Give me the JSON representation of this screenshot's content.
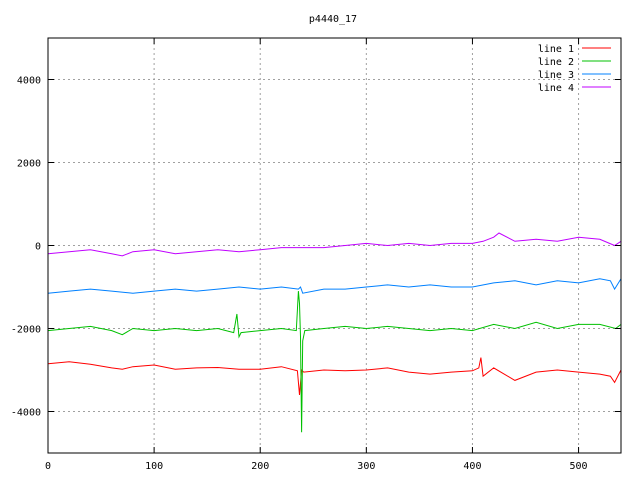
{
  "chart_data": {
    "type": "line",
    "title": "p4440_17",
    "xlabel": "",
    "ylabel": "",
    "xlim": [
      0,
      540
    ],
    "ylim": [
      -5000,
      5000
    ],
    "x_ticks": [
      0,
      100,
      200,
      300,
      400,
      500
    ],
    "y_ticks": [
      -4000,
      -2000,
      0,
      2000,
      4000
    ],
    "x_tick_labels": [
      "0",
      "100",
      "200",
      "300",
      "400",
      "500"
    ],
    "y_tick_labels": [
      "-4000",
      "-2000",
      "0",
      "2000",
      "4000"
    ],
    "grid": true,
    "legend_position": "top-right",
    "series": [
      {
        "name": "line 1",
        "color": "#ff0000",
        "x": [
          0,
          20,
          40,
          60,
          70,
          80,
          100,
          120,
          140,
          160,
          180,
          200,
          220,
          235,
          237,
          239,
          241,
          260,
          280,
          300,
          320,
          340,
          360,
          380,
          400,
          406,
          408,
          410,
          420,
          440,
          460,
          480,
          500,
          520,
          530,
          534,
          540
        ],
        "y": [
          -2850,
          -2800,
          -2860,
          -2950,
          -2980,
          -2920,
          -2880,
          -2980,
          -2950,
          -2940,
          -2980,
          -2980,
          -2920,
          -3020,
          -3600,
          -3000,
          -3050,
          -3000,
          -3020,
          -3000,
          -2950,
          -3050,
          -3100,
          -3050,
          -3020,
          -2950,
          -2700,
          -3150,
          -2950,
          -3250,
          -3050,
          -3000,
          -3050,
          -3100,
          -3150,
          -3300,
          -3000
        ]
      },
      {
        "name": "line 2",
        "color": "#00c000",
        "x": [
          0,
          20,
          40,
          60,
          70,
          80,
          100,
          120,
          140,
          160,
          175,
          178,
          180,
          182,
          200,
          220,
          234,
          236,
          237,
          238,
          239,
          240,
          242,
          260,
          280,
          300,
          320,
          340,
          360,
          380,
          400,
          420,
          440,
          460,
          480,
          500,
          520,
          535,
          540
        ],
        "y": [
          -2050,
          -2000,
          -1950,
          -2050,
          -2150,
          -2000,
          -2050,
          -2000,
          -2050,
          -2000,
          -2100,
          -1650,
          -2200,
          -2100,
          -2050,
          -2000,
          -2050,
          -1100,
          -1400,
          -2200,
          -4500,
          -2300,
          -2050,
          -2000,
          -1950,
          -2000,
          -1950,
          -2000,
          -2050,
          -2000,
          -2050,
          -1900,
          -2000,
          -1850,
          -2000,
          -1900,
          -1900,
          -2000,
          -1900
        ]
      },
      {
        "name": "line 3",
        "color": "#0080ff",
        "x": [
          0,
          20,
          40,
          60,
          80,
          100,
          120,
          140,
          160,
          180,
          200,
          220,
          236,
          238,
          240,
          260,
          280,
          300,
          320,
          340,
          360,
          380,
          400,
          420,
          440,
          460,
          480,
          500,
          520,
          530,
          534,
          540
        ],
        "y": [
          -1150,
          -1100,
          -1050,
          -1100,
          -1150,
          -1100,
          -1050,
          -1100,
          -1050,
          -1000,
          -1050,
          -1000,
          -1050,
          -1000,
          -1150,
          -1050,
          -1050,
          -1000,
          -950,
          -1000,
          -950,
          -1000,
          -1000,
          -900,
          -850,
          -950,
          -850,
          -900,
          -800,
          -850,
          -1050,
          -800
        ]
      },
      {
        "name": "line 4",
        "color": "#c000ff",
        "x": [
          0,
          20,
          40,
          60,
          70,
          80,
          100,
          120,
          140,
          160,
          180,
          200,
          220,
          240,
          260,
          280,
          300,
          320,
          340,
          360,
          380,
          400,
          410,
          420,
          425,
          440,
          460,
          480,
          500,
          520,
          534,
          540
        ],
        "y": [
          -200,
          -150,
          -100,
          -200,
          -250,
          -150,
          -100,
          -200,
          -150,
          -100,
          -150,
          -100,
          -50,
          -50,
          -50,
          0,
          50,
          0,
          50,
          0,
          50,
          50,
          100,
          200,
          300,
          100,
          150,
          100,
          200,
          150,
          0,
          100
        ]
      }
    ]
  }
}
